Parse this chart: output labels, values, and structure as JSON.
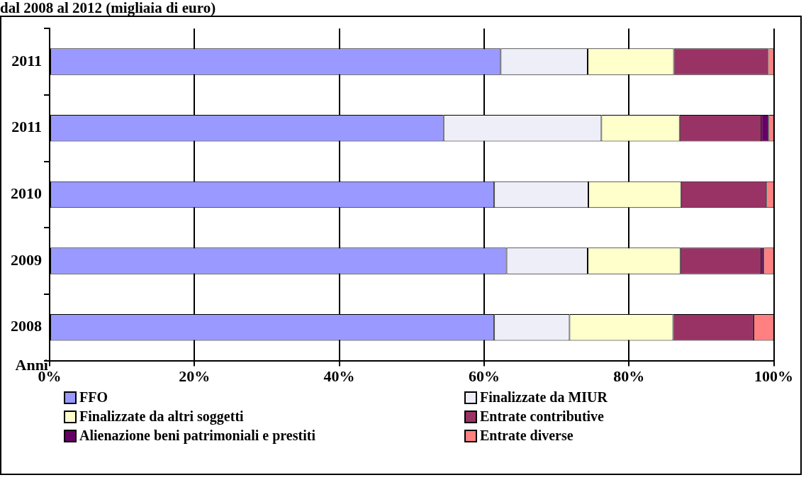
{
  "chart_data": {
    "type": "bar",
    "orientation": "horizontal",
    "stacked": true,
    "title": "dal 2008 al 2012 (migliaia di euro)",
    "ylabel": "Anni",
    "categories": [
      "2011",
      "2011",
      "2010",
      "2009",
      "2008"
    ],
    "series": [
      {
        "name": "FFO",
        "color": "#9999ff",
        "values": [
          62.3,
          54.4,
          61.4,
          63.1,
          61.4
        ]
      },
      {
        "name": "Finalizzate da MIUR",
        "color": "#eeeef8",
        "values": [
          12.0,
          21.8,
          13.0,
          11.2,
          10.4
        ]
      },
      {
        "name": "Finalizzate da altri soggetti",
        "color": "#ffffcc",
        "values": [
          11.9,
          10.8,
          12.8,
          12.8,
          14.3
        ]
      },
      {
        "name": "Entrate contributive",
        "color": "#993366",
        "values": [
          13.0,
          11.3,
          11.8,
          11.2,
          11.1
        ]
      },
      {
        "name": "Alienazione beni patrimoniali e prestiti",
        "color": "#660066",
        "values": [
          null,
          1.0,
          null,
          0.3,
          null
        ]
      },
      {
        "name": "Entrate diverse",
        "color": "#ff8080",
        "values": [
          0.8,
          0.7,
          1.0,
          1.4,
          2.8
        ]
      }
    ],
    "xlim": [
      0,
      100
    ],
    "xticks": [
      {
        "value": 0,
        "label": "0%"
      },
      {
        "value": 20,
        "label": "20%"
      },
      {
        "value": 40,
        "label": "40%"
      },
      {
        "value": 60,
        "label": "60%"
      },
      {
        "value": 80,
        "label": "80%"
      },
      {
        "value": 100,
        "label": "100%"
      }
    ],
    "grid": "x",
    "legend": "bottom"
  }
}
